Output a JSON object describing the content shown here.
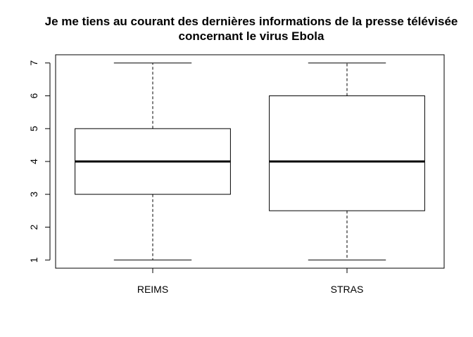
{
  "chart_data": {
    "type": "boxplot",
    "title_lines": [
      "Je me tiens au courant des dernières informations de la presse télévisée",
      "concernant le virus Ebola"
    ],
    "xlabel": "",
    "ylabel": "",
    "ylim": [
      0.75,
      7.25
    ],
    "yticks": [
      1,
      2,
      3,
      4,
      5,
      6,
      7
    ],
    "categories": [
      "REIMS",
      "STRAS"
    ],
    "boxes": [
      {
        "name": "REIMS",
        "min": 1,
        "q1": 3,
        "median": 4,
        "q3": 5,
        "max": 7
      },
      {
        "name": "STRAS",
        "min": 1,
        "q1": 2.5,
        "median": 4,
        "q3": 6,
        "max": 7
      }
    ],
    "grid": false,
    "legend": "none",
    "colors": {
      "box_fill": "#ffffff",
      "stroke": "#000000"
    }
  }
}
